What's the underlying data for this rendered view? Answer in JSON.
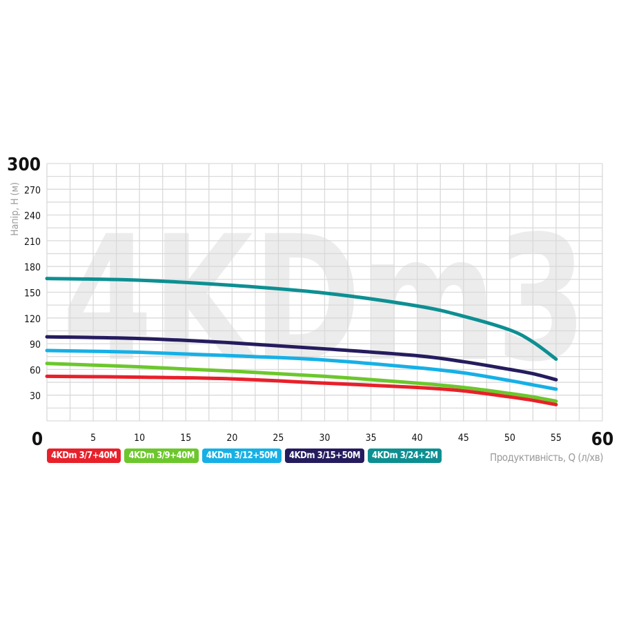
{
  "chart_data": {
    "type": "line",
    "watermark": "4KDm3",
    "xlabel": "Продуктивність, Q (л/хв)",
    "ylabel": "Напір, Н (м)",
    "xlim": [
      0,
      60
    ],
    "ylim": [
      0,
      300
    ],
    "xticks": [
      0,
      5,
      10,
      15,
      20,
      25,
      30,
      35,
      40,
      45,
      50,
      55,
      60
    ],
    "yticks": [
      0,
      30,
      60,
      90,
      120,
      150,
      180,
      210,
      240,
      270,
      300
    ],
    "grid": true,
    "legend_placement": "bottom-left",
    "x": [
      0,
      10,
      20,
      30,
      40,
      45,
      50,
      52.5,
      55
    ],
    "series": [
      {
        "name": "4KDm 3/7+40M",
        "color": "#e8202a",
        "values": [
          52,
          51,
          49,
          44,
          39,
          35,
          28,
          24,
          19
        ]
      },
      {
        "name": "4KDm 3/9+40M",
        "color": "#6cc72c",
        "values": [
          67,
          63,
          58,
          52,
          44,
          39,
          32,
          28,
          23
        ]
      },
      {
        "name": "4KDm 3/12+50M",
        "color": "#16b0e6",
        "values": [
          82,
          80,
          76,
          71,
          62,
          56,
          47,
          42,
          37
        ]
      },
      {
        "name": "4KDm 3/15+50M",
        "color": "#251c5e",
        "values": [
          98,
          96,
          91,
          84,
          76,
          69,
          60,
          55,
          48
        ]
      },
      {
        "name": "4KDm 3/24+2M",
        "color": "#0d8f92",
        "values": [
          166,
          164,
          158,
          149,
          134,
          122,
          106,
          92,
          72
        ]
      }
    ]
  }
}
